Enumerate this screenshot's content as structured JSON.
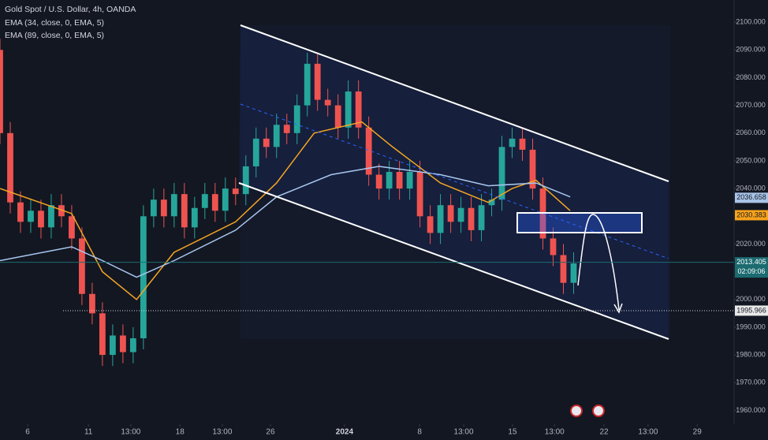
{
  "chart_data": {
    "type": "candlestick",
    "title": "Gold Spot / U.S. Dollar, 4h, OANDA",
    "xlim": [
      0,
      215
    ],
    "ylim": [
      1955,
      2108
    ],
    "xticks": [
      {
        "value": 8.1,
        "label": "6"
      },
      {
        "value": 25.9,
        "label": "11"
      },
      {
        "value": 38.3,
        "label": "13:00"
      },
      {
        "value": 52.7,
        "label": "18"
      },
      {
        "value": 65.1,
        "label": "13:00"
      },
      {
        "value": 79.2,
        "label": "26"
      },
      {
        "value": 100.9,
        "label": "2024"
      },
      {
        "value": 122.9,
        "label": "8"
      },
      {
        "value": 135.8,
        "label": "13:00"
      },
      {
        "value": 150.1,
        "label": "15"
      },
      {
        "value": 162.4,
        "label": "13:00"
      },
      {
        "value": 176.9,
        "label": "22"
      },
      {
        "value": 189.8,
        "label": "13:00"
      },
      {
        "value": 204.2,
        "label": "29"
      }
    ],
    "yticks": [
      {
        "value": 2100,
        "label": "2100.000"
      },
      {
        "value": 2090,
        "label": "2090.000"
      },
      {
        "value": 2080,
        "label": "2080.000"
      },
      {
        "value": 2070,
        "label": "2070.000"
      },
      {
        "value": 2060,
        "label": "2060.000"
      },
      {
        "value": 2050,
        "label": "2050.000"
      },
      {
        "value": 2040,
        "label": "2040.000"
      },
      {
        "value": 2020,
        "label": "2020.000"
      },
      {
        "value": 2000,
        "label": "2000.000"
      },
      {
        "value": 1990,
        "label": "1990.000"
      },
      {
        "value": 1980,
        "label": "1980.000"
      },
      {
        "value": 1970,
        "label": "1970.000"
      },
      {
        "value": 1960,
        "label": "1960.000"
      }
    ],
    "candles": {
      "up_color": "#26a69a",
      "down_color": "#ef5350",
      "x": [
        0,
        3,
        6,
        9,
        12,
        15,
        18,
        21,
        24,
        27,
        30,
        33,
        36,
        39,
        42,
        45,
        48,
        51,
        54,
        57,
        60,
        63,
        66,
        69,
        72,
        75,
        78,
        81,
        84,
        87,
        90,
        93,
        96,
        99,
        102,
        105,
        108,
        111,
        114,
        117,
        120,
        123,
        126,
        129,
        132,
        135,
        138,
        141,
        144,
        147,
        150,
        153,
        156,
        159,
        162,
        165,
        168
      ],
      "open": [
        2090,
        2060,
        2035,
        2028,
        2032,
        2026,
        2034,
        2030,
        2022,
        2002,
        1995,
        1980,
        1987,
        1981,
        1986,
        2030,
        2036,
        2030,
        2038,
        2026,
        2033,
        2038,
        2032,
        2040,
        2038,
        2048,
        2058,
        2055,
        2063,
        2060,
        2070,
        2085,
        2072,
        2070,
        2062,
        2075,
        2062,
        2045,
        2040,
        2046,
        2040,
        2046,
        2030,
        2024,
        2034,
        2028,
        2033,
        2025,
        2034,
        2036,
        2055,
        2058,
        2054,
        2040,
        2022,
        2016,
        2006
      ],
      "high": [
        2094,
        2064,
        2039,
        2036,
        2036,
        2038,
        2038,
        2034,
        2026,
        2006,
        1999,
        1991,
        1991,
        1990,
        2034,
        2040,
        2040,
        2042,
        2042,
        2037,
        2042,
        2042,
        2044,
        2044,
        2052,
        2062,
        2062,
        2067,
        2067,
        2074,
        2089,
        2089,
        2076,
        2074,
        2079,
        2079,
        2066,
        2049,
        2050,
        2050,
        2050,
        2050,
        2034,
        2038,
        2038,
        2037,
        2037,
        2038,
        2040,
        2059,
        2062,
        2062,
        2058,
        2044,
        2026,
        2020,
        2017
      ],
      "low": [
        2056,
        2031,
        2024,
        2024,
        2022,
        2022,
        2026,
        2018,
        1998,
        1991,
        1976,
        1976,
        1977,
        1977,
        1982,
        2026,
        2026,
        2026,
        2022,
        2022,
        2029,
        2028,
        2028,
        2034,
        2034,
        2044,
        2051,
        2051,
        2056,
        2056,
        2066,
        2068,
        2066,
        2058,
        2058,
        2058,
        2041,
        2036,
        2036,
        2036,
        2036,
        2026,
        2020,
        2020,
        2024,
        2024,
        2021,
        2021,
        2030,
        2032,
        2051,
        2050,
        2036,
        2018,
        2012,
        2002,
        2002
      ],
      "close": [
        2060,
        2035,
        2028,
        2032,
        2026,
        2034,
        2030,
        2022,
        2002,
        1995,
        1980,
        1987,
        1981,
        1986,
        2030,
        2036,
        2030,
        2038,
        2026,
        2033,
        2038,
        2032,
        2040,
        2038,
        2048,
        2058,
        2055,
        2063,
        2060,
        2070,
        2085,
        2072,
        2070,
        2062,
        2075,
        2062,
        2045,
        2040,
        2046,
        2040,
        2046,
        2030,
        2024,
        2034,
        2028,
        2033,
        2025,
        2034,
        2036,
        2055,
        2058,
        2054,
        2040,
        2022,
        2016,
        2006,
        2013
      ]
    },
    "series": [
      {
        "name": "EMA (34, close, 0, EMA, 5)",
        "color": "#f5a623",
        "x": [
          0,
          21,
          30,
          40,
          51,
          69,
          81,
          92,
          106,
          115,
          129,
          143,
          150,
          157,
          167
        ],
        "values": [
          2040,
          2031,
          2010,
          2000,
          2017,
          2028,
          2042,
          2060,
          2064,
          2055,
          2042,
          2035,
          2040,
          2043,
          2032
        ]
      },
      {
        "name": "EMA (89, close, 0, EMA, 5)",
        "color": "#a8c8f0",
        "x": [
          0,
          21,
          30,
          40,
          51,
          69,
          81,
          97,
          111,
          129,
          143,
          157,
          167
        ],
        "values": [
          2014,
          2019,
          2014,
          2008,
          2014,
          2025,
          2037,
          2045,
          2048,
          2045,
          2041,
          2042,
          2037
        ]
      }
    ],
    "price_labels": [
      {
        "value": 2036.658,
        "label": "2036.658",
        "color": "#a9c4e8",
        "text_color": "#131722"
      },
      {
        "value": 2030.383,
        "label": "2030.383",
        "color": "#f7a21b",
        "text_color": "#131722"
      },
      {
        "value": 2013.405,
        "label": "2013.405",
        "sublabel": "02:09:06",
        "color": "#1b6b70",
        "text_color": "#ffffff"
      },
      {
        "value": 1995.966,
        "label": "1995.966",
        "color": "#e8e8e8",
        "text_color": "#131722"
      }
    ]
  }
}
